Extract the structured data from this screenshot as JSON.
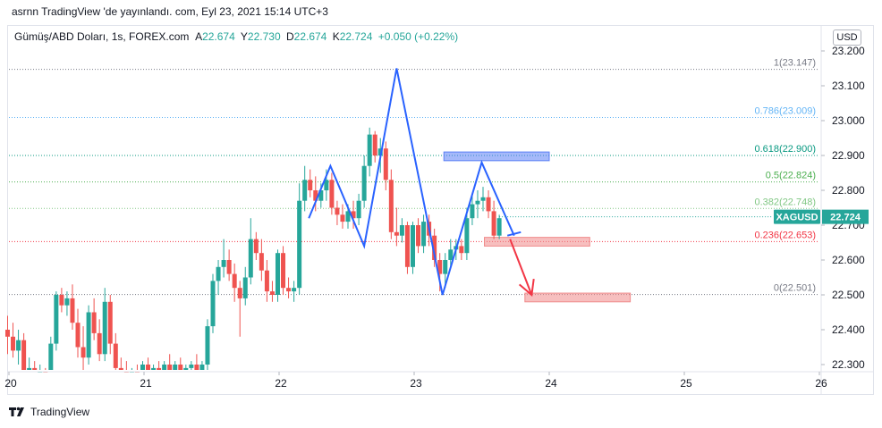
{
  "header": {
    "published": "asrnn TradingView 'de yayınlandı. com, Eyl 23, 2021 15:14 UTC+3"
  },
  "legend": {
    "symbol": "Gümüş/ABD Doları, 1s, FOREX.com",
    "open_label": "A",
    "open": "22.674",
    "high_label": "Y",
    "high": "22.730",
    "low_label": "D",
    "low": "22.674",
    "close_label": "K",
    "close": "22.724",
    "change": "+0.050 (+0.22%)"
  },
  "currency_button": "USD",
  "price_tag": {
    "symbol": "XAGUSD",
    "value": "22.724"
  },
  "brand": {
    "name": "TradingView"
  },
  "colors": {
    "up": "#26a69a",
    "down": "#ef5350",
    "pattern": "#2962ff",
    "arrow": "#f23645"
  },
  "chart_data": {
    "type": "candlestick",
    "title": "",
    "x_ticks": [
      "20",
      "21",
      "22",
      "23",
      "24",
      "25",
      "26"
    ],
    "y_ticks": [
      "23.200",
      "23.100",
      "23.000",
      "22.900",
      "22.800",
      "22.700",
      "22.600",
      "22.500",
      "22.400",
      "22.300"
    ],
    "ylim": [
      22.27,
      23.22
    ],
    "grid": false,
    "fib_levels": [
      {
        "ratio": 1,
        "price": 23.147,
        "label": "1(23.147)",
        "color": "#787b86"
      },
      {
        "ratio": 0.786,
        "price": 23.009,
        "label": "0.786(23.009)",
        "color": "#64b5f6"
      },
      {
        "ratio": 0.618,
        "price": 22.9,
        "label": "0.618(22.900)",
        "color": "#089981"
      },
      {
        "ratio": 0.5,
        "price": 22.824,
        "label": "0.5(22.824)",
        "color": "#4caf50"
      },
      {
        "ratio": 0.382,
        "price": 22.748,
        "label": "0.382(22.748)",
        "color": "#81c784"
      },
      {
        "ratio": 0.236,
        "price": 22.653,
        "label": "0.236(22.653)",
        "color": "#f23645"
      },
      {
        "ratio": 0,
        "price": 22.501,
        "label": "0(22.501)",
        "color": "#787b86"
      }
    ],
    "last_price": 22.724,
    "pattern_lines": [
      [
        [
          22.22,
          22.72
        ],
        [
          22.38,
          22.87
        ],
        [
          22.63,
          22.64
        ],
        [
          22.87,
          23.15
        ],
        [
          23.21,
          22.5
        ],
        [
          23.5,
          22.88
        ],
        [
          23.74,
          22.67
        ]
      ],
      [
        [
          23.69,
          22.67
        ],
        [
          23.79,
          22.68
        ]
      ]
    ],
    "projection": [
      [
        23.71,
        22.66
      ],
      [
        23.87,
        22.5
      ]
    ],
    "zones": [
      {
        "x0": 23.22,
        "x1": 24.0,
        "y0": 22.885,
        "y1": 22.91,
        "color": "#5b7ff5"
      },
      {
        "x0": 23.52,
        "x1": 24.3,
        "y0": 22.64,
        "y1": 22.665,
        "color": "#f08a8a"
      },
      {
        "x0": 23.82,
        "x1": 24.6,
        "y0": 22.48,
        "y1": 22.505,
        "color": "#f08a8a"
      }
    ],
    "candles": [
      {
        "t": 19.99,
        "o": 22.4,
        "h": 22.44,
        "l": 22.33,
        "c": 22.38
      },
      {
        "t": 20.03,
        "o": 22.38,
        "h": 22.42,
        "l": 22.32,
        "c": 22.34
      },
      {
        "t": 20.07,
        "o": 22.34,
        "h": 22.4,
        "l": 22.3,
        "c": 22.37
      },
      {
        "t": 20.11,
        "o": 22.37,
        "h": 22.39,
        "l": 22.27,
        "c": 22.28
      },
      {
        "t": 20.15,
        "o": 22.28,
        "h": 22.32,
        "l": 22.25,
        "c": 22.29
      },
      {
        "t": 20.19,
        "o": 22.29,
        "h": 22.31,
        "l": 22.24,
        "c": 22.27
      },
      {
        "t": 20.23,
        "o": 22.27,
        "h": 22.3,
        "l": 22.25,
        "c": 22.28
      },
      {
        "t": 20.27,
        "o": 22.28,
        "h": 22.29,
        "l": 22.25,
        "c": 22.27
      },
      {
        "t": 20.31,
        "o": 22.27,
        "h": 22.38,
        "l": 22.25,
        "c": 22.36
      },
      {
        "t": 20.35,
        "o": 22.36,
        "h": 22.51,
        "l": 22.34,
        "c": 22.5
      },
      {
        "t": 20.39,
        "o": 22.5,
        "h": 22.52,
        "l": 22.45,
        "c": 22.47
      },
      {
        "t": 20.43,
        "o": 22.47,
        "h": 22.51,
        "l": 22.44,
        "c": 22.49
      },
      {
        "t": 20.47,
        "o": 22.49,
        "h": 22.53,
        "l": 22.4,
        "c": 22.42
      },
      {
        "t": 20.51,
        "o": 22.42,
        "h": 22.46,
        "l": 22.32,
        "c": 22.35
      },
      {
        "t": 20.55,
        "o": 22.35,
        "h": 22.41,
        "l": 22.28,
        "c": 22.32
      },
      {
        "t": 20.59,
        "o": 22.32,
        "h": 22.47,
        "l": 22.3,
        "c": 22.45
      },
      {
        "t": 20.63,
        "o": 22.45,
        "h": 22.49,
        "l": 22.37,
        "c": 22.39
      },
      {
        "t": 20.67,
        "o": 22.39,
        "h": 22.43,
        "l": 22.31,
        "c": 22.33
      },
      {
        "t": 20.71,
        "o": 22.33,
        "h": 22.52,
        "l": 22.31,
        "c": 22.48
      },
      {
        "t": 20.75,
        "o": 22.48,
        "h": 22.5,
        "l": 22.33,
        "c": 22.36
      },
      {
        "t": 20.79,
        "o": 22.36,
        "h": 22.39,
        "l": 22.28,
        "c": 22.29
      },
      {
        "t": 20.83,
        "o": 22.29,
        "h": 22.32,
        "l": 22.25,
        "c": 22.28
      },
      {
        "t": 20.87,
        "o": 22.28,
        "h": 22.31,
        "l": 22.25,
        "c": 22.27
      },
      {
        "t": 20.91,
        "o": 22.27,
        "h": 22.29,
        "l": 22.25,
        "c": 22.28
      },
      {
        "t": 20.95,
        "o": 22.28,
        "h": 22.3,
        "l": 22.26,
        "c": 22.27
      },
      {
        "t": 20.99,
        "o": 22.27,
        "h": 22.31,
        "l": 22.25,
        "c": 22.3
      },
      {
        "t": 21.03,
        "o": 22.3,
        "h": 22.32,
        "l": 22.26,
        "c": 22.28
      },
      {
        "t": 21.07,
        "o": 22.28,
        "h": 22.3,
        "l": 22.25,
        "c": 22.29
      },
      {
        "t": 21.11,
        "o": 22.29,
        "h": 22.31,
        "l": 22.26,
        "c": 22.28
      },
      {
        "t": 21.15,
        "o": 22.28,
        "h": 22.31,
        "l": 22.26,
        "c": 22.3
      },
      {
        "t": 21.19,
        "o": 22.3,
        "h": 22.33,
        "l": 22.27,
        "c": 22.28
      },
      {
        "t": 21.23,
        "o": 22.28,
        "h": 22.31,
        "l": 22.26,
        "c": 22.3
      },
      {
        "t": 21.27,
        "o": 22.3,
        "h": 22.32,
        "l": 22.27,
        "c": 22.28
      },
      {
        "t": 21.31,
        "o": 22.28,
        "h": 22.3,
        "l": 22.26,
        "c": 22.29
      },
      {
        "t": 21.35,
        "o": 22.29,
        "h": 22.31,
        "l": 22.27,
        "c": 22.3
      },
      {
        "t": 21.39,
        "o": 22.3,
        "h": 22.33,
        "l": 22.27,
        "c": 22.28
      },
      {
        "t": 21.43,
        "o": 22.28,
        "h": 22.31,
        "l": 22.26,
        "c": 22.3
      },
      {
        "t": 21.47,
        "o": 22.3,
        "h": 22.43,
        "l": 22.28,
        "c": 22.41
      },
      {
        "t": 21.51,
        "o": 22.41,
        "h": 22.56,
        "l": 22.39,
        "c": 22.54
      },
      {
        "t": 21.55,
        "o": 22.54,
        "h": 22.6,
        "l": 22.5,
        "c": 22.58
      },
      {
        "t": 21.59,
        "o": 22.58,
        "h": 22.66,
        "l": 22.55,
        "c": 22.6
      },
      {
        "t": 21.63,
        "o": 22.6,
        "h": 22.63,
        "l": 22.54,
        "c": 22.56
      },
      {
        "t": 21.67,
        "o": 22.56,
        "h": 22.59,
        "l": 22.48,
        "c": 22.52
      },
      {
        "t": 21.71,
        "o": 22.52,
        "h": 22.54,
        "l": 22.38,
        "c": 22.49
      },
      {
        "t": 21.75,
        "o": 22.49,
        "h": 22.58,
        "l": 22.47,
        "c": 22.55
      },
      {
        "t": 21.79,
        "o": 22.55,
        "h": 22.72,
        "l": 22.53,
        "c": 22.66
      },
      {
        "t": 21.83,
        "o": 22.66,
        "h": 22.68,
        "l": 22.6,
        "c": 22.62
      },
      {
        "t": 21.87,
        "o": 22.62,
        "h": 22.66,
        "l": 22.54,
        "c": 22.57
      },
      {
        "t": 21.91,
        "o": 22.57,
        "h": 22.6,
        "l": 22.48,
        "c": 22.51
      },
      {
        "t": 21.95,
        "o": 22.51,
        "h": 22.54,
        "l": 22.48,
        "c": 22.5
      },
      {
        "t": 21.99,
        "o": 22.5,
        "h": 22.63,
        "l": 22.48,
        "c": 22.62
      },
      {
        "t": 22.03,
        "o": 22.62,
        "h": 22.64,
        "l": 22.5,
        "c": 22.52
      },
      {
        "t": 22.07,
        "o": 22.52,
        "h": 22.55,
        "l": 22.49,
        "c": 22.51
      },
      {
        "t": 22.11,
        "o": 22.51,
        "h": 22.54,
        "l": 22.48,
        "c": 22.52
      },
      {
        "t": 22.15,
        "o": 22.52,
        "h": 22.82,
        "l": 22.5,
        "c": 22.77
      },
      {
        "t": 22.19,
        "o": 22.77,
        "h": 22.87,
        "l": 22.74,
        "c": 22.83
      },
      {
        "t": 22.23,
        "o": 22.83,
        "h": 22.86,
        "l": 22.78,
        "c": 22.8
      },
      {
        "t": 22.27,
        "o": 22.8,
        "h": 22.84,
        "l": 22.74,
        "c": 22.77
      },
      {
        "t": 22.31,
        "o": 22.77,
        "h": 22.82,
        "l": 22.75,
        "c": 22.8
      },
      {
        "t": 22.35,
        "o": 22.8,
        "h": 22.86,
        "l": 22.77,
        "c": 22.83
      },
      {
        "t": 22.39,
        "o": 22.83,
        "h": 22.85,
        "l": 22.73,
        "c": 22.75
      },
      {
        "t": 22.43,
        "o": 22.75,
        "h": 22.77,
        "l": 22.7,
        "c": 22.73
      },
      {
        "t": 22.47,
        "o": 22.73,
        "h": 22.76,
        "l": 22.69,
        "c": 22.71
      },
      {
        "t": 22.51,
        "o": 22.71,
        "h": 22.76,
        "l": 22.69,
        "c": 22.74
      },
      {
        "t": 22.55,
        "o": 22.74,
        "h": 22.77,
        "l": 22.69,
        "c": 22.72
      },
      {
        "t": 22.59,
        "o": 22.72,
        "h": 22.79,
        "l": 22.7,
        "c": 22.77
      },
      {
        "t": 22.63,
        "o": 22.77,
        "h": 22.9,
        "l": 22.75,
        "c": 22.87
      },
      {
        "t": 22.67,
        "o": 22.87,
        "h": 22.98,
        "l": 22.84,
        "c": 22.96
      },
      {
        "t": 22.71,
        "o": 22.96,
        "h": 22.97,
        "l": 22.88,
        "c": 22.9
      },
      {
        "t": 22.75,
        "o": 22.9,
        "h": 22.95,
        "l": 22.85,
        "c": 22.92
      },
      {
        "t": 22.79,
        "o": 22.92,
        "h": 22.94,
        "l": 22.8,
        "c": 22.83
      },
      {
        "t": 22.83,
        "o": 22.83,
        "h": 22.86,
        "l": 22.66,
        "c": 22.68
      },
      {
        "t": 22.87,
        "o": 22.68,
        "h": 22.75,
        "l": 22.64,
        "c": 22.67
      },
      {
        "t": 22.91,
        "o": 22.67,
        "h": 22.72,
        "l": 22.65,
        "c": 22.7
      },
      {
        "t": 22.95,
        "o": 22.7,
        "h": 22.71,
        "l": 22.56,
        "c": 22.58
      },
      {
        "t": 22.99,
        "o": 22.58,
        "h": 22.71,
        "l": 22.56,
        "c": 22.7
      },
      {
        "t": 23.03,
        "o": 22.7,
        "h": 22.72,
        "l": 22.62,
        "c": 22.64
      },
      {
        "t": 23.07,
        "o": 22.64,
        "h": 22.73,
        "l": 22.62,
        "c": 22.71
      },
      {
        "t": 23.11,
        "o": 22.71,
        "h": 22.73,
        "l": 22.64,
        "c": 22.67
      },
      {
        "t": 23.15,
        "o": 22.67,
        "h": 22.69,
        "l": 22.58,
        "c": 22.6
      },
      {
        "t": 23.19,
        "o": 22.6,
        "h": 22.62,
        "l": 22.51,
        "c": 22.56
      },
      {
        "t": 23.23,
        "o": 22.56,
        "h": 22.62,
        "l": 22.52,
        "c": 22.6
      },
      {
        "t": 23.27,
        "o": 22.6,
        "h": 22.66,
        "l": 22.58,
        "c": 22.63
      },
      {
        "t": 23.31,
        "o": 22.63,
        "h": 22.66,
        "l": 22.6,
        "c": 22.64
      },
      {
        "t": 23.35,
        "o": 22.64,
        "h": 22.66,
        "l": 22.6,
        "c": 22.62
      },
      {
        "t": 23.39,
        "o": 22.62,
        "h": 22.75,
        "l": 22.6,
        "c": 22.72
      },
      {
        "t": 23.43,
        "o": 22.72,
        "h": 22.79,
        "l": 22.7,
        "c": 22.76
      },
      {
        "t": 23.47,
        "o": 22.76,
        "h": 22.8,
        "l": 22.72,
        "c": 22.77
      },
      {
        "t": 23.51,
        "o": 22.77,
        "h": 22.81,
        "l": 22.74,
        "c": 22.78
      },
      {
        "t": 23.55,
        "o": 22.78,
        "h": 22.8,
        "l": 22.72,
        "c": 22.74
      },
      {
        "t": 23.59,
        "o": 22.74,
        "h": 22.77,
        "l": 22.66,
        "c": 22.67
      },
      {
        "t": 23.63,
        "o": 22.67,
        "h": 22.73,
        "l": 22.66,
        "c": 22.72
      }
    ]
  }
}
